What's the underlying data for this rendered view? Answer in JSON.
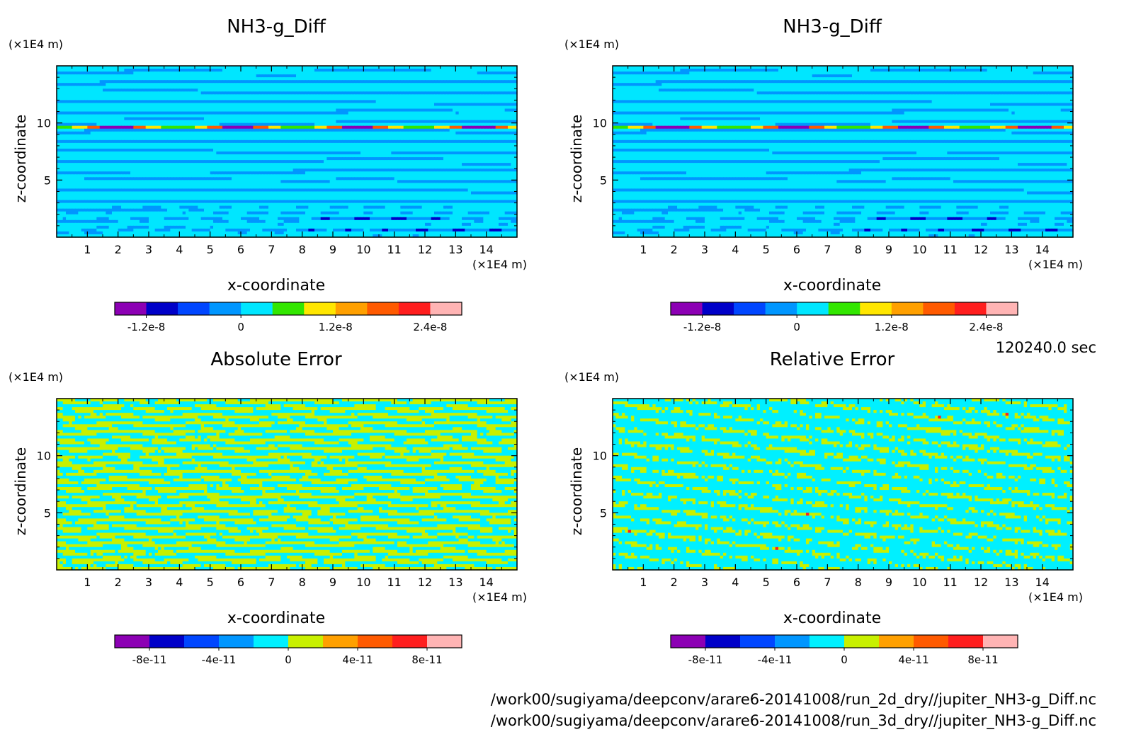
{
  "chart_data": [
    {
      "type": "heatmap",
      "title": "NH3-g_Diff",
      "xlabel": "x-coordinate",
      "ylabel": "z-coordinate",
      "x_unit": "(×1E4 m)",
      "y_unit": "(×1E4 m)",
      "xlim": [
        0,
        15
      ],
      "ylim": [
        0,
        15
      ],
      "xticks": [
        1,
        2,
        3,
        4,
        5,
        6,
        7,
        8,
        9,
        10,
        11,
        12,
        13,
        14
      ],
      "yticks": [
        5,
        10
      ],
      "colorbar": {
        "levels": [
          -1.6e-08,
          -1.2e-08,
          -8e-09,
          -4e-09,
          0,
          4e-09,
          8e-09,
          1.2e-08,
          1.6e-08,
          2e-08,
          2.4e-08,
          2.6e-08
        ],
        "colors": [
          "#8c00b4",
          "#0000c8",
          "#0046ff",
          "#0096ff",
          "#00e6ff",
          "#32e600",
          "#ffe600",
          "#ffa000",
          "#ff5a00",
          "#ff1e1e",
          "#ffb4b4"
        ],
        "tick_labels": [
          "-1.2e-8",
          "0",
          "1.2e-8",
          "2.4e-8"
        ]
      },
      "pattern": "banded"
    },
    {
      "type": "heatmap",
      "title": "NH3-g_Diff",
      "xlabel": "x-coordinate",
      "ylabel": "z-coordinate",
      "x_unit": "(×1E4 m)",
      "y_unit": "(×1E4 m)",
      "xlim": [
        0,
        15
      ],
      "ylim": [
        0,
        15
      ],
      "xticks": [
        1,
        2,
        3,
        4,
        5,
        6,
        7,
        8,
        9,
        10,
        11,
        12,
        13,
        14
      ],
      "yticks": [
        5,
        10
      ],
      "colorbar": {
        "levels": [
          -1.6e-08,
          -1.2e-08,
          -8e-09,
          -4e-09,
          0,
          4e-09,
          8e-09,
          1.2e-08,
          1.6e-08,
          2e-08,
          2.4e-08,
          2.6e-08
        ],
        "colors": [
          "#8c00b4",
          "#0000c8",
          "#0046ff",
          "#0096ff",
          "#00e6ff",
          "#32e600",
          "#ffe600",
          "#ffa000",
          "#ff5a00",
          "#ff1e1e",
          "#ffb4b4"
        ],
        "tick_labels": [
          "-1.2e-8",
          "0",
          "1.2e-8",
          "2.4e-8"
        ]
      },
      "pattern": "banded"
    },
    {
      "type": "heatmap",
      "title": "Absolute Error",
      "xlabel": "x-coordinate",
      "ylabel": "z-coordinate",
      "x_unit": "(×1E4 m)",
      "y_unit": "(×1E4 m)",
      "xlim": [
        0,
        15
      ],
      "ylim": [
        0,
        15
      ],
      "xticks": [
        1,
        2,
        3,
        4,
        5,
        6,
        7,
        8,
        9,
        10,
        11,
        12,
        13,
        14
      ],
      "yticks": [
        5,
        10
      ],
      "colorbar": {
        "levels": [
          -1e-10,
          -8e-11,
          -6e-11,
          -4e-11,
          -2e-11,
          0,
          2e-11,
          4e-11,
          6e-11,
          8e-11,
          1e-10
        ],
        "colors": [
          "#8c00b4",
          "#0000c8",
          "#0046ff",
          "#0096ff",
          "#00f0ff",
          "#c8f000",
          "#ffa000",
          "#ff5a00",
          "#ff1e1e",
          "#ffb4b4"
        ],
        "tick_labels": [
          "-8e-11",
          "-4e-11",
          "0",
          "4e-11",
          "8e-11"
        ]
      },
      "pattern": "noisy-two-color"
    },
    {
      "type": "heatmap",
      "title": "Relative Error",
      "xlabel": "x-coordinate",
      "ylabel": "z-coordinate",
      "x_unit": "(×1E4 m)",
      "y_unit": "(×1E4 m)",
      "xlim": [
        0,
        15
      ],
      "ylim": [
        0,
        15
      ],
      "xticks": [
        1,
        2,
        3,
        4,
        5,
        6,
        7,
        8,
        9,
        10,
        11,
        12,
        13,
        14
      ],
      "yticks": [
        5,
        10
      ],
      "colorbar": {
        "levels": [
          -1e-10,
          -8e-11,
          -6e-11,
          -4e-11,
          -2e-11,
          0,
          2e-11,
          4e-11,
          6e-11,
          8e-11,
          1e-10
        ],
        "colors": [
          "#8c00b4",
          "#0000c8",
          "#0046ff",
          "#0096ff",
          "#00f0ff",
          "#c8f000",
          "#ffa000",
          "#ff5a00",
          "#ff1e1e",
          "#ffb4b4"
        ],
        "tick_labels": [
          "-8e-11",
          "-4e-11",
          "0",
          "4e-11",
          "8e-11"
        ]
      },
      "pattern": "noisy-cyan-dominant"
    }
  ],
  "time_label": "120240.0 sec",
  "file_paths": [
    "/work00/sugiyama/deepconv/arare6-20141008/run_2d_dry//jupiter_NH3-g_Diff.nc",
    "/work00/sugiyama/deepconv/arare6-20141008/run_3d_dry//jupiter_NH3-g_Diff.nc"
  ]
}
